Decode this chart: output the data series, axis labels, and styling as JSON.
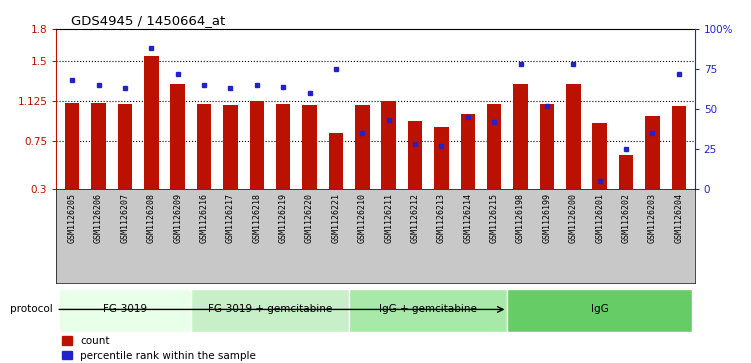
{
  "title": "GDS4945 / 1450664_at",
  "samples": [
    "GSM1126205",
    "GSM1126206",
    "GSM1126207",
    "GSM1126208",
    "GSM1126209",
    "GSM1126216",
    "GSM1126217",
    "GSM1126218",
    "GSM1126219",
    "GSM1126220",
    "GSM1126221",
    "GSM1126210",
    "GSM1126211",
    "GSM1126212",
    "GSM1126213",
    "GSM1126214",
    "GSM1126215",
    "GSM1126198",
    "GSM1126199",
    "GSM1126200",
    "GSM1126201",
    "GSM1126202",
    "GSM1126203",
    "GSM1126204"
  ],
  "count_values": [
    1.11,
    1.11,
    1.1,
    1.55,
    1.28,
    1.1,
    1.09,
    1.12,
    1.1,
    1.09,
    0.82,
    1.09,
    1.12,
    0.94,
    0.88,
    1.0,
    1.1,
    1.28,
    1.1,
    1.28,
    0.92,
    0.62,
    0.98,
    1.08
  ],
  "percentile_values": [
    68,
    65,
    63,
    88,
    72,
    65,
    63,
    65,
    64,
    60,
    75,
    35,
    43,
    28,
    27,
    45,
    42,
    78,
    52,
    78,
    5,
    25,
    35,
    72
  ],
  "protocols": [
    {
      "label": "FG-3019",
      "start": 0,
      "end": 5
    },
    {
      "label": "FG-3019 + gemcitabine",
      "start": 5,
      "end": 11
    },
    {
      "label": "IgG + gemcitabine",
      "start": 11,
      "end": 17
    },
    {
      "label": "IgG",
      "start": 17,
      "end": 24
    }
  ],
  "proto_colors": [
    "#e8ffe8",
    "#c8f0c8",
    "#a8e8a8",
    "#66cc66"
  ],
  "bar_color": "#bb1100",
  "dot_color": "#2222cc",
  "ylim_left": [
    0.3,
    1.8
  ],
  "ylim_right": [
    0,
    100
  ],
  "yticks_left": [
    0.3,
    0.75,
    1.125,
    1.5,
    1.8
  ],
  "ytick_labels_left": [
    "0.3",
    "0.75",
    "1.125",
    "1.5",
    "1.8"
  ],
  "yticks_right": [
    0,
    25,
    50,
    75,
    100
  ],
  "ytick_labels_right": [
    "0",
    "25",
    "50",
    "75",
    "100%"
  ],
  "hlines": [
    0.75,
    1.125,
    1.5
  ],
  "legend_count": "count",
  "legend_pct": "percentile rank within the sample",
  "protocol_label": "protocol"
}
